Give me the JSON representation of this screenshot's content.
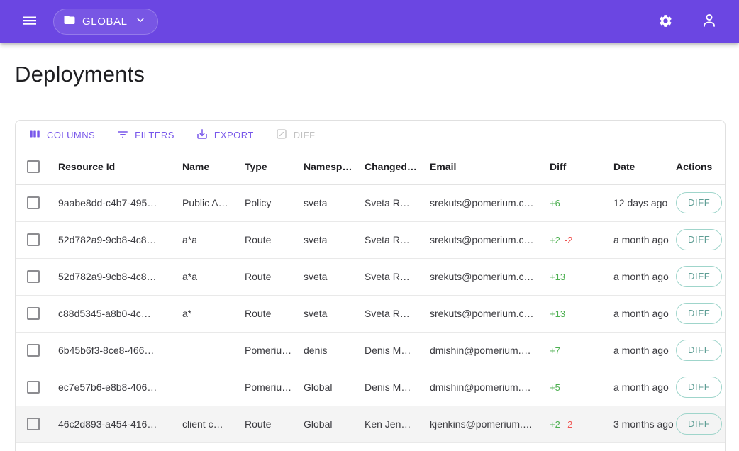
{
  "appbar": {
    "global_label": "GLOBAL",
    "icons": [
      "menu-icon",
      "folder-icon",
      "chevron-down-icon",
      "settings-gear-icon",
      "account-person-icon"
    ]
  },
  "page": {
    "title": "Deployments"
  },
  "toolbar": {
    "columns_label": "COLUMNS",
    "filters_label": "FILTERS",
    "export_label": "EXPORT",
    "diff_label": "DIFF",
    "diff_disabled": true
  },
  "table": {
    "columns": [
      {
        "key": "resource-id",
        "label": "Resource Id"
      },
      {
        "key": "name",
        "label": "Name"
      },
      {
        "key": "type",
        "label": "Type"
      },
      {
        "key": "namespace",
        "label": "Namesp…"
      },
      {
        "key": "changed-by",
        "label": "Changed…"
      },
      {
        "key": "email",
        "label": "Email"
      },
      {
        "key": "diff",
        "label": "Diff"
      },
      {
        "key": "date",
        "label": "Date"
      },
      {
        "key": "actions",
        "label": "Actions"
      }
    ],
    "rows": [
      {
        "resource_id": "9aabe8dd-c4b7-495…",
        "name": "Public A…",
        "type": "Policy",
        "namespace": "sveta",
        "changed_by": "Sveta R…",
        "email": "srekuts@pomerium.c…",
        "diff_add": "+6",
        "diff_remove": "",
        "date": "12 days ago",
        "action_label": "DIFF",
        "highlighted": false
      },
      {
        "resource_id": "52d782a9-9cb8-4c8…",
        "name": "a*a",
        "type": "Route",
        "namespace": "sveta",
        "changed_by": "Sveta R…",
        "email": "srekuts@pomerium.c…",
        "diff_add": "+2",
        "diff_remove": "-2",
        "date": "a month ago",
        "action_label": "DIFF",
        "highlighted": false
      },
      {
        "resource_id": "52d782a9-9cb8-4c8…",
        "name": "a*a",
        "type": "Route",
        "namespace": "sveta",
        "changed_by": "Sveta R…",
        "email": "srekuts@pomerium.c…",
        "diff_add": "+13",
        "diff_remove": "",
        "date": "a month ago",
        "action_label": "DIFF",
        "highlighted": false
      },
      {
        "resource_id": "c88d5345-a8b0-4c…",
        "name": "a*",
        "type": "Route",
        "namespace": "sveta",
        "changed_by": "Sveta R…",
        "email": "srekuts@pomerium.c…",
        "diff_add": "+13",
        "diff_remove": "",
        "date": "a month ago",
        "action_label": "DIFF",
        "highlighted": false
      },
      {
        "resource_id": "6b45b6f3-8ce8-466…",
        "name": "",
        "type": "Pomeriu…",
        "namespace": "denis",
        "changed_by": "Denis M…",
        "email": "dmishin@pomerium.…",
        "diff_add": "+7",
        "diff_remove": "",
        "date": "a month ago",
        "action_label": "DIFF",
        "highlighted": false
      },
      {
        "resource_id": "ec7e57b6-e8b8-406…",
        "name": "",
        "type": "Pomeriu…",
        "namespace": "Global",
        "changed_by": "Denis M…",
        "email": "dmishin@pomerium.…",
        "diff_add": "+5",
        "diff_remove": "",
        "date": "a month ago",
        "action_label": "DIFF",
        "highlighted": false
      },
      {
        "resource_id": "46c2d893-a454-416…",
        "name": "client c…",
        "type": "Route",
        "namespace": "Global",
        "changed_by": "Ken Jen…",
        "email": "kjenkins@pomerium.…",
        "diff_add": "+2",
        "diff_remove": "-2",
        "date": "3 months ago",
        "action_label": "DIFF",
        "highlighted": true
      }
    ]
  },
  "colors": {
    "appbar_purple": "#6B46E2",
    "accent_purple": "#7857EA",
    "diff_add_green": "#4CAF50",
    "diff_remove_red": "#EF5350",
    "action_border_teal": "#9FD5CB",
    "action_text_teal": "#5F9E95"
  }
}
